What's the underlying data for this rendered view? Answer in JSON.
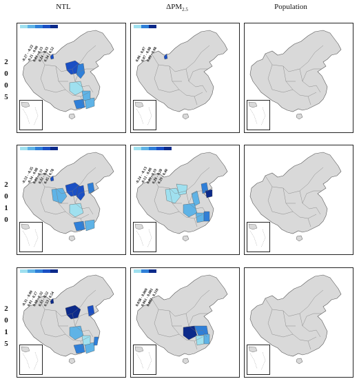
{
  "columns": [
    {
      "title": "NTL",
      "sub": ""
    },
    {
      "title": "ΔPM",
      "sub": "2.5"
    },
    {
      "title": "Population",
      "sub": ""
    }
  ],
  "years": [
    {
      "digits": [
        "2",
        "0",
        "0",
        "5"
      ]
    },
    {
      "digits": [
        "2",
        "0",
        "1",
        "0"
      ]
    },
    {
      "digits": [
        "2",
        "0",
        "1",
        "5"
      ]
    }
  ],
  "colors": {
    "land": "#d9d9d9",
    "border": "#555555",
    "c1": "#9fe0ef",
    "c2": "#5fb3e6",
    "c3": "#2f7fd8",
    "c4": "#1a4fc4",
    "c5": "#0c2a8a"
  },
  "panels": [
    {
      "row": 0,
      "col": 0,
      "legend": [
        "-0.27 - -0.22",
        "-0.21 - 0.00",
        "0.01 - 0.23",
        "0.24 - 0.33",
        "0.34 - 0.52"
      ],
      "regions": [
        "xinjiang-east",
        "inner-mongolia-mid",
        "shaanxi",
        "sichuan-east",
        "guangxi",
        "guangdong",
        "hunan"
      ],
      "levels": [
        4,
        4,
        3,
        1,
        3,
        2,
        2
      ]
    },
    {
      "row": 0,
      "col": 1,
      "legend": [
        "0.06 - 0.07",
        "0.07 - 0.08",
        "0.09 - 0.08"
      ],
      "regions": [
        "xinjiang-east"
      ],
      "levels": [
        4
      ]
    },
    {
      "row": 0,
      "col": 2,
      "legend": [],
      "regions": [],
      "levels": []
    },
    {
      "row": 1,
      "col": 0,
      "legend": [
        "-0.53 - -0.35",
        "-0.34 - 0.08",
        "0.09 - 0.31",
        "0.32 - 0.44",
        "0.45 - 0.78"
      ],
      "regions": [
        "xinjiang-east",
        "inner-mongolia-mid",
        "shaanxi",
        "qinghai",
        "sichuan-east",
        "guangxi",
        "guangdong",
        "hebei"
      ],
      "levels": [
        4,
        4,
        4,
        2,
        1,
        3,
        2,
        3
      ]
    },
    {
      "row": 1,
      "col": 1,
      "legend": [
        "-0.24 - -0.13",
        "-0.12 - 0.08",
        "0.09 - 0.19",
        "0.20 - 0.28",
        "0.29 - 0.40"
      ],
      "regions": [
        "qinghai",
        "gansu",
        "shanxi",
        "hebei",
        "sichuan-east",
        "hunan",
        "jiangxi",
        "shandong"
      ],
      "levels": [
        1,
        1,
        2,
        3,
        2,
        2,
        3,
        5
      ]
    },
    {
      "row": 1,
      "col": 2,
      "legend": [],
      "regions": [],
      "levels": []
    },
    {
      "row": 2,
      "col": 0,
      "legend": [
        "-0.31 - 0.00",
        "0.01 - 0.17",
        "0.18 - 0.32",
        "0.33 - 0.52",
        "0.53 - 0.54"
      ],
      "regions": [
        "xinjiang-east",
        "inner-mongolia-mid",
        "hebei",
        "sichuan-east",
        "guangxi",
        "guangdong",
        "fujian",
        "hunan"
      ],
      "levels": [
        5,
        5,
        4,
        2,
        3,
        2,
        3,
        1
      ]
    },
    {
      "row": 2,
      "col": 1,
      "legend": [
        "0.038 - 0.060",
        "0.061 - 0.081",
        "0.082 - 0.110"
      ],
      "regions": [
        "sichuan-east",
        "hubei",
        "hunan",
        "jiangxi"
      ],
      "levels": [
        5,
        3,
        1,
        2
      ]
    },
    {
      "row": 2,
      "col": 2,
      "legend": [],
      "regions": [],
      "levels": []
    }
  ]
}
